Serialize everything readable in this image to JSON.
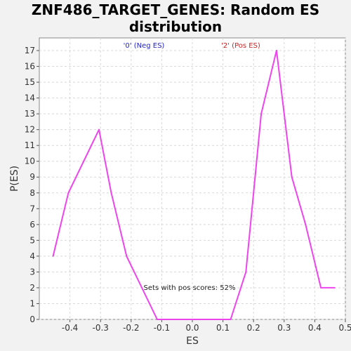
{
  "chart_data": {
    "type": "line",
    "title_line1": "ZNF486_TARGET_GENES: Random ES",
    "title_line2": "distribution",
    "xlabel": "ES",
    "ylabel": "P(ES)",
    "xlim": [
      -0.5,
      0.5
    ],
    "ylim": [
      0,
      17.8
    ],
    "xticks": [
      "-0.4",
      "-0.3",
      "-0.2",
      "-0.1",
      "0.0",
      "0.1",
      "0.2",
      "0.3",
      "0.4",
      "0.5"
    ],
    "yticks": [
      "0",
      "1",
      "2",
      "3",
      "4",
      "5",
      "6",
      "7",
      "8",
      "9",
      "10",
      "11",
      "12",
      "13",
      "14",
      "15",
      "16",
      "17"
    ],
    "grid": true,
    "annotations": {
      "neg_label": "'0' (Neg ES)",
      "pos_label": "'2' (Pos ES)",
      "pos_scores": "Sets with pos scores: 52%"
    },
    "series": [
      {
        "color": "#ee44ee",
        "points": [
          [
            -0.455,
            4
          ],
          [
            -0.405,
            8
          ],
          [
            -0.355,
            10
          ],
          [
            -0.305,
            12
          ],
          [
            -0.265,
            8
          ],
          [
            -0.215,
            4
          ],
          [
            -0.115,
            0
          ],
          [
            -0.07,
            0
          ],
          [
            0.0,
            0
          ],
          [
            0.07,
            0
          ],
          [
            0.125,
            0
          ],
          [
            0.175,
            3
          ],
          [
            0.225,
            13
          ],
          [
            0.275,
            17
          ],
          [
            0.325,
            9
          ],
          [
            0.37,
            6
          ],
          [
            0.42,
            2
          ],
          [
            0.465,
            2
          ]
        ]
      }
    ],
    "colors": {
      "neg_label": "#2222cc",
      "pos_label": "#cc2222",
      "line": "#ee44ee"
    }
  }
}
